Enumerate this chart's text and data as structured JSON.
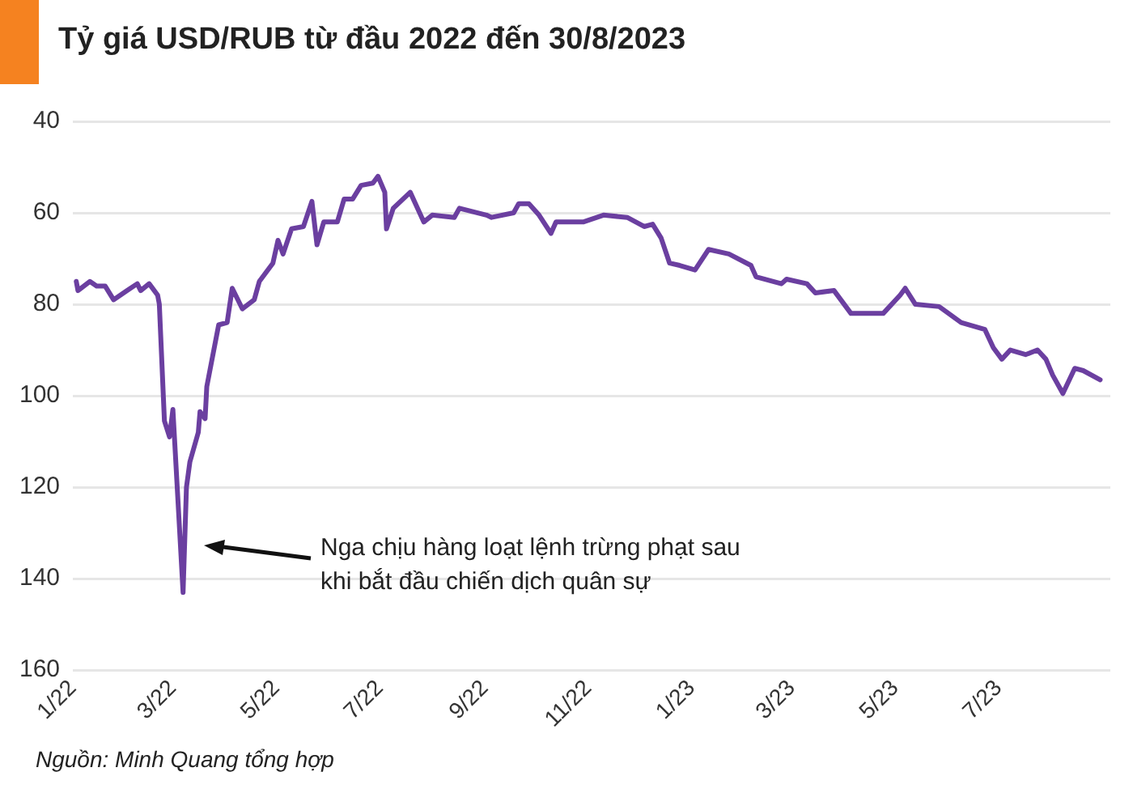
{
  "chart_data": {
    "type": "line",
    "title": "Tỷ giá USD/RUB từ đầu 2022 đến 30/8/2023",
    "x": [
      "2022-01-03",
      "2022-01-04",
      "2022-01-11",
      "2022-01-15",
      "2022-01-20",
      "2022-01-25",
      "2022-02-02",
      "2022-02-08",
      "2022-02-10",
      "2022-02-15",
      "2022-02-20",
      "2022-02-21",
      "2022-02-24",
      "2022-02-27",
      "2022-03-01",
      "2022-03-07",
      "2022-03-09",
      "2022-03-11",
      "2022-03-16",
      "2022-03-17",
      "2022-03-20",
      "2022-03-21",
      "2022-03-28",
      "2022-04-02",
      "2022-04-05",
      "2022-04-11",
      "2022-04-18",
      "2022-04-21",
      "2022-04-29",
      "2022-05-02",
      "2022-05-05",
      "2022-05-10",
      "2022-05-17",
      "2022-05-22",
      "2022-05-25",
      "2022-05-29",
      "2022-06-06",
      "2022-06-10",
      "2022-06-15",
      "2022-06-20",
      "2022-06-27",
      "2022-06-30",
      "2022-07-04",
      "2022-07-05",
      "2022-07-09",
      "2022-07-19",
      "2022-07-27",
      "2022-08-01",
      "2022-08-14",
      "2022-08-17",
      "2022-09-02",
      "2022-09-05",
      "2022-09-18",
      "2022-09-21",
      "2022-09-27",
      "2022-10-03",
      "2022-10-10",
      "2022-10-13",
      "2022-10-29",
      "2022-11-10",
      "2022-11-24",
      "2022-12-04",
      "2022-12-09",
      "2022-12-14",
      "2022-12-19",
      "2022-12-25",
      "2023-01-03",
      "2023-01-11",
      "2023-01-23",
      "2023-02-05",
      "2023-02-08",
      "2023-02-23",
      "2023-02-26",
      "2023-03-10",
      "2023-03-15",
      "2023-03-26",
      "2023-04-05",
      "2023-04-24",
      "2023-05-04",
      "2023-05-07",
      "2023-05-13",
      "2023-05-27",
      "2023-06-09",
      "2023-06-23",
      "2023-06-28",
      "2023-07-03",
      "2023-07-08",
      "2023-07-17",
      "2023-07-24",
      "2023-07-29",
      "2023-08-02",
      "2023-08-08",
      "2023-08-15",
      "2023-08-20",
      "2023-08-30"
    ],
    "series": [
      {
        "color": "#6b3fa0",
        "values": [
          75,
          77,
          75,
          76,
          76,
          79,
          77,
          75.5,
          77,
          75.5,
          78,
          80,
          105.5,
          109,
          103,
          143,
          120,
          114.5,
          108,
          103.5,
          105,
          98,
          84.5,
          84,
          76.5,
          81,
          79,
          75,
          71,
          66,
          69,
          63.5,
          63,
          57.5,
          67,
          62,
          62,
          57,
          57,
          54,
          53.5,
          52,
          55.5,
          63.5,
          59,
          55.5,
          62,
          60.5,
          61,
          59,
          60.5,
          61,
          60,
          58,
          58,
          60.5,
          64.5,
          62,
          62,
          60.5,
          61,
          63,
          62.5,
          65.5,
          71,
          71.5,
          72.5,
          68,
          69,
          71.5,
          74,
          75.5,
          74.5,
          75.5,
          77.5,
          77,
          82,
          82,
          78,
          76.5,
          80,
          80.5,
          84,
          85.5,
          89.5,
          92,
          90,
          91,
          90,
          92,
          95.5,
          99.5,
          94,
          94.5,
          96.5
        ]
      }
    ],
    "ylim": [
      160,
      40
    ],
    "yticks": [
      40,
      60,
      80,
      100,
      120,
      140,
      160
    ],
    "xlim": [
      "2022-01-01",
      "2023-09-05"
    ],
    "xticks": [
      {
        "value": "2022-01-01",
        "label": "1/22"
      },
      {
        "value": "2022-03-01",
        "label": "3/22"
      },
      {
        "value": "2022-05-01",
        "label": "5/22"
      },
      {
        "value": "2022-07-01",
        "label": "7/22"
      },
      {
        "value": "2022-09-01",
        "label": "9/22"
      },
      {
        "value": "2022-11-01",
        "label": "11/22"
      },
      {
        "value": "2023-01-01",
        "label": "1/23"
      },
      {
        "value": "2023-03-01",
        "label": "3/23"
      },
      {
        "value": "2023-05-01",
        "label": "5/23"
      },
      {
        "value": "2023-07-01",
        "label": "7/23"
      }
    ],
    "grid": "y",
    "legend": false,
    "marker": "none",
    "line_style": "solid",
    "annotations": [
      "Nga chịu hàng loạt lệnh trừng phạt sau khi bắt đầu chiến dịch quân sự",
      "Nguồn: Minh Quang tổng hợp"
    ]
  }
}
